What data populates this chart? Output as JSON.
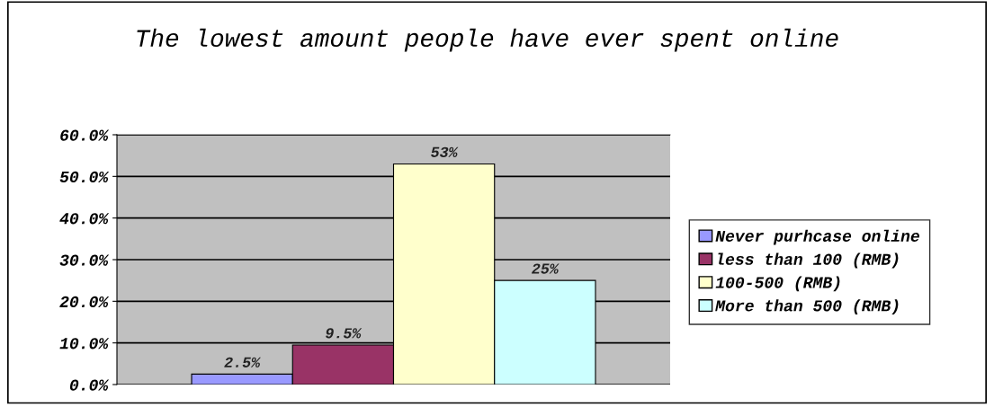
{
  "chart_data": {
    "type": "bar",
    "title": "The lowest amount people have ever spent online",
    "categories": [
      null
    ],
    "series": [
      {
        "name": "Never purhcase online",
        "color": "#9999ff",
        "values": [
          2.5
        ],
        "value_labels": [
          "2.5%"
        ]
      },
      {
        "name": "less than 100 (RMB)",
        "color": "#993366",
        "values": [
          9.5
        ],
        "value_labels": [
          "9.5%"
        ]
      },
      {
        "name": "100-500 (RMB)",
        "color": "#ffffcc",
        "values": [
          53
        ],
        "value_labels": [
          "53%"
        ]
      },
      {
        "name": "More than 500 (RMB)",
        "color": "#ccffff",
        "values": [
          25
        ],
        "value_labels": [
          "25%"
        ]
      }
    ],
    "ylim": [
      0,
      60
    ],
    "yticks": [
      {
        "value": 0,
        "label": "0.0%"
      },
      {
        "value": 10,
        "label": "10.0%"
      },
      {
        "value": 20,
        "label": "20.0%"
      },
      {
        "value": 30,
        "label": "30.0%"
      },
      {
        "value": 40,
        "label": "40.0%"
      },
      {
        "value": 50,
        "label": "50.0%"
      },
      {
        "value": 60,
        "label": "60.0%"
      }
    ],
    "grid": "y",
    "legend": "right"
  }
}
